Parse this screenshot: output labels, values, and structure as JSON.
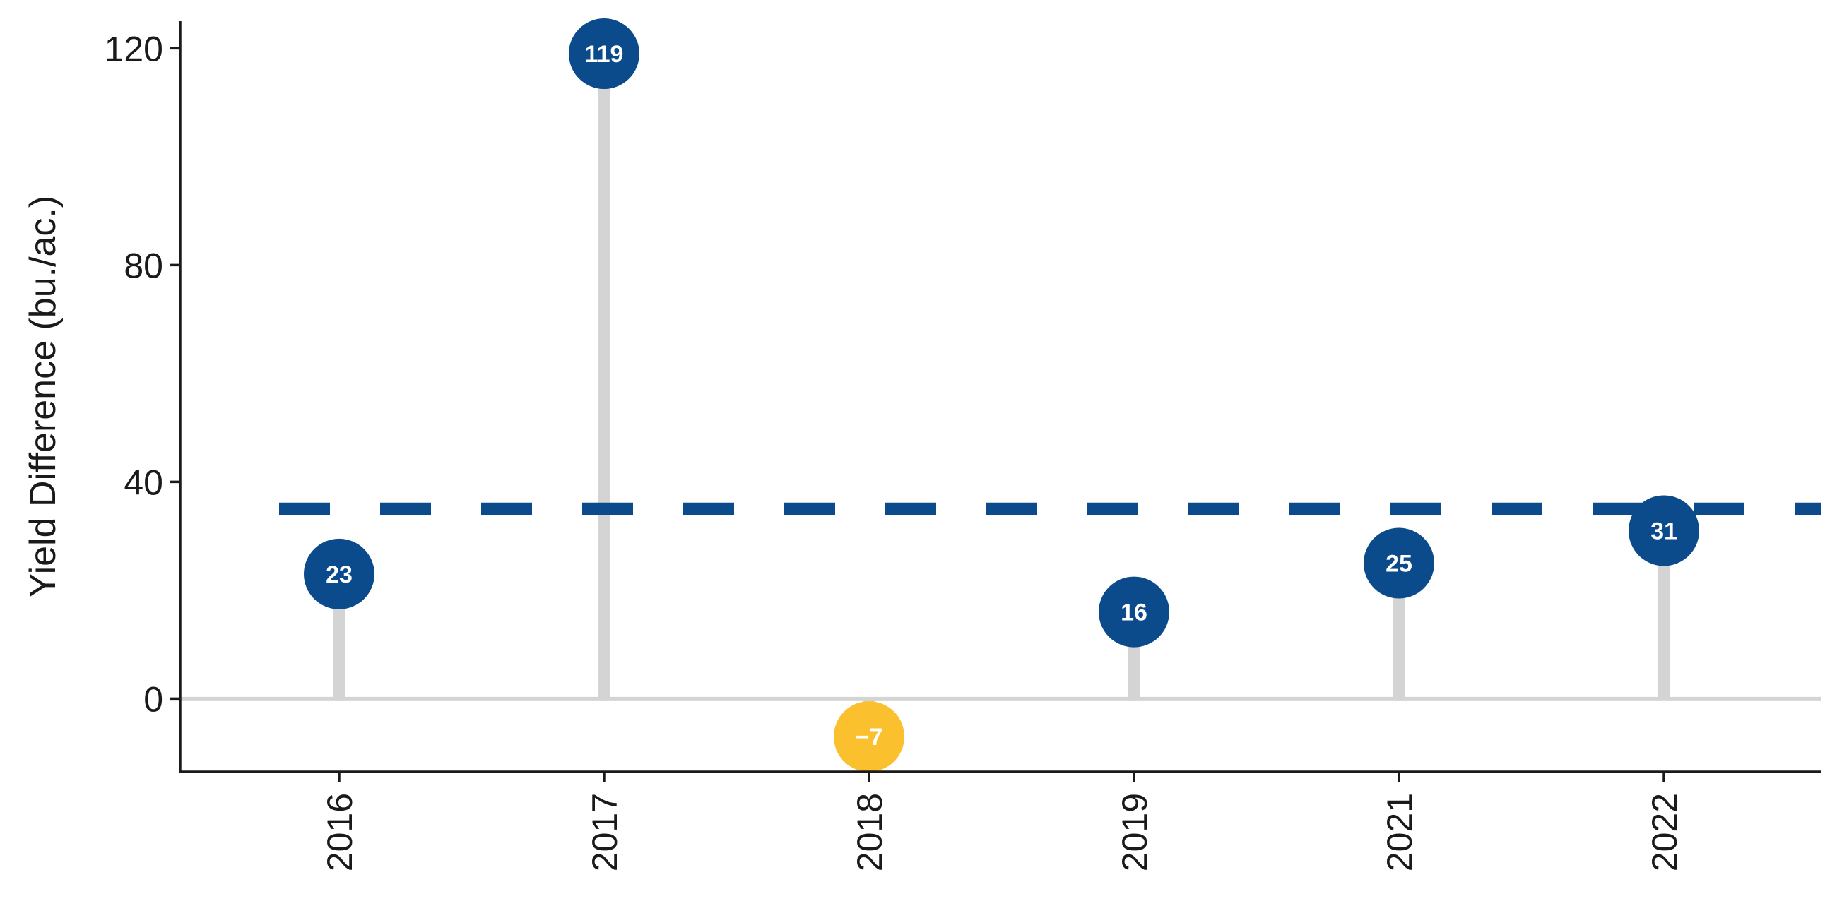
{
  "chart_data": {
    "type": "lollipop",
    "categories": [
      "2016",
      "2017",
      "2018",
      "2019",
      "2021",
      "2022"
    ],
    "values": [
      23,
      119,
      -7,
      16,
      25,
      31
    ],
    "labels": [
      "23",
      "119",
      "−7",
      "16",
      "25",
      "31"
    ],
    "ylabel": "Yield Difference (bu./ac.)",
    "xlabel": "",
    "ylim": [
      -13.5,
      125
    ],
    "yticks": [
      0,
      40,
      80,
      120
    ],
    "reference_line": {
      "value": 35,
      "style": "dashed",
      "color": "#0b4b8c"
    },
    "zero_line": true,
    "grid": false,
    "colors": {
      "positive": "#0b4b8c",
      "negative": "#fbc02d",
      "stem": "#d4d4d4"
    }
  }
}
